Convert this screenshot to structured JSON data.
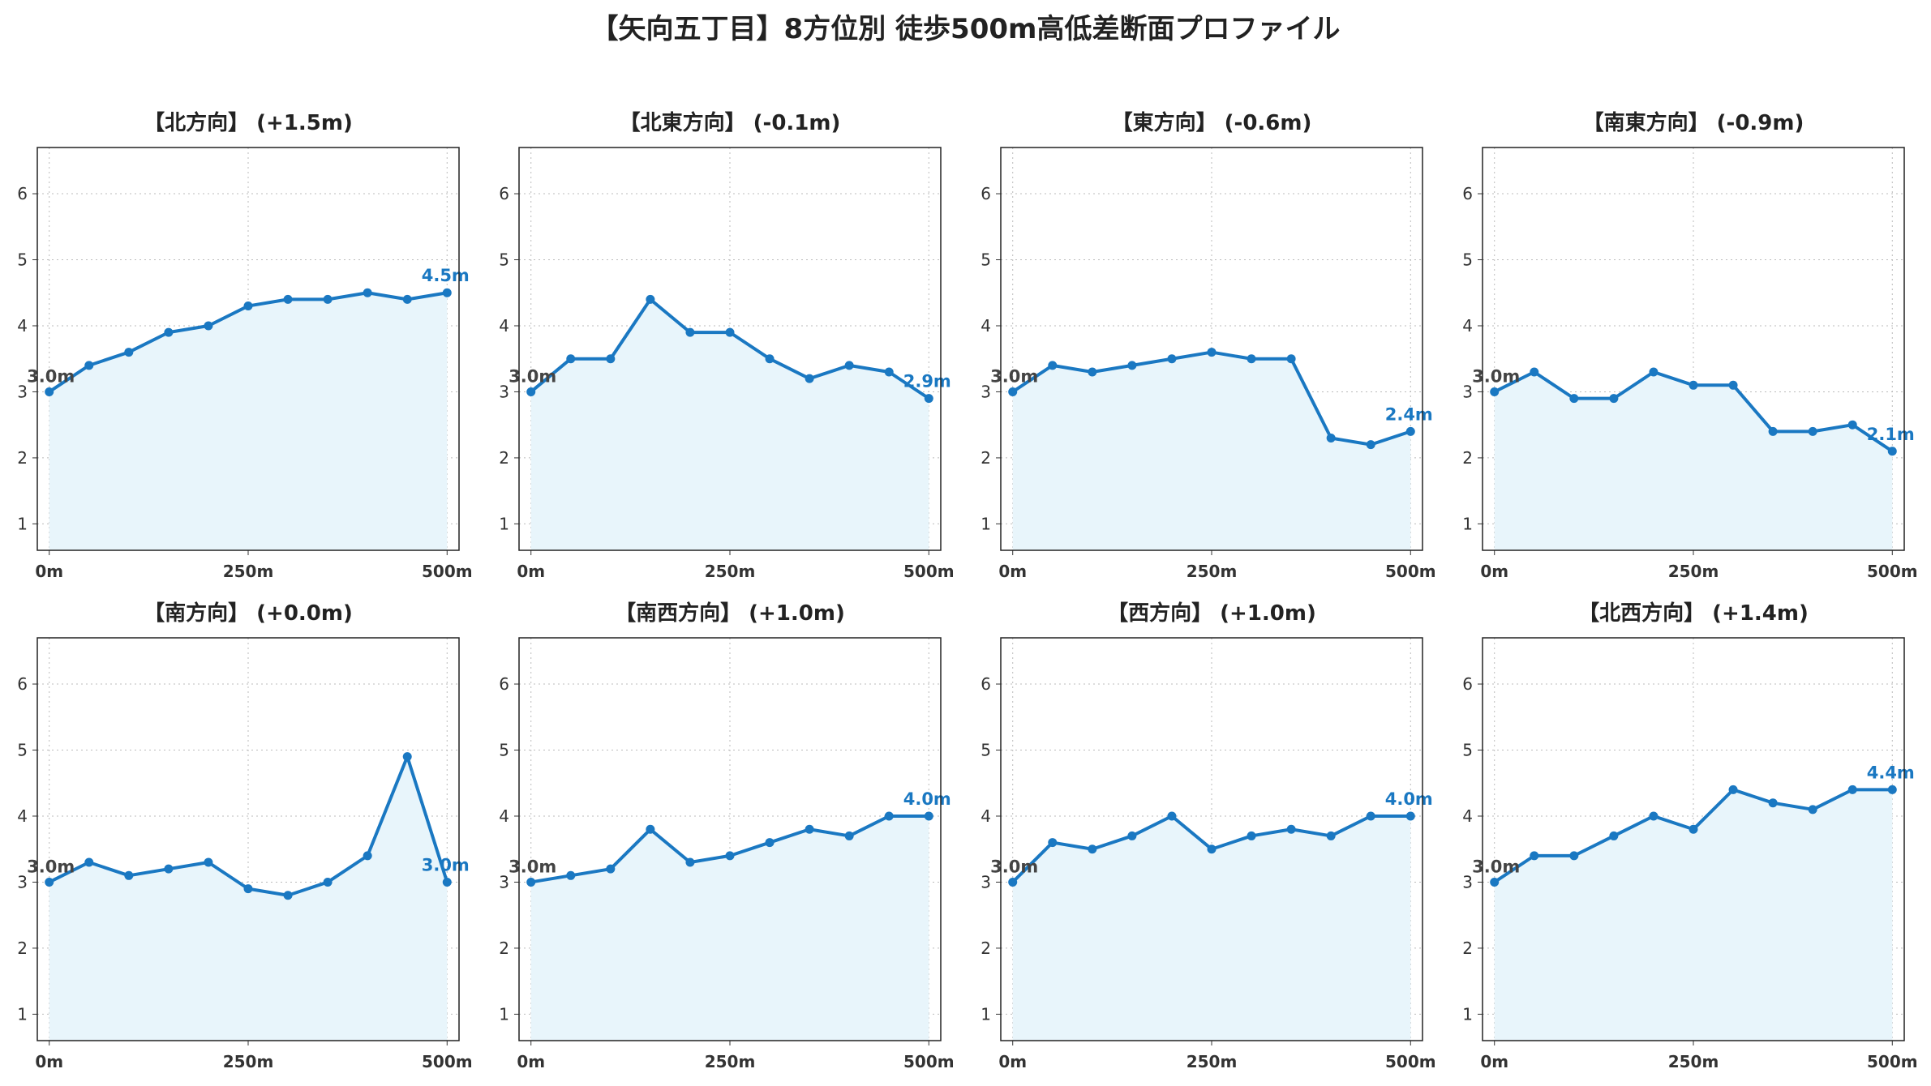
{
  "title": "【矢向五丁目】8方位別 徒歩500m高低差断面プロファイル",
  "colors": {
    "line": "#1a78c2",
    "fill": "#e8f5fb",
    "grid": "#bbbbbb",
    "start_label": "#444444"
  },
  "chart_data": [
    {
      "type": "area",
      "title": "【北方向】 (+1.5m)",
      "x": [
        0,
        50,
        100,
        150,
        200,
        250,
        300,
        350,
        400,
        450,
        500
      ],
      "values": [
        3.0,
        3.4,
        3.6,
        3.9,
        4.0,
        4.3,
        4.4,
        4.4,
        4.5,
        4.4,
        4.5
      ],
      "start_label": "3.0m",
      "end_label": "4.5m",
      "xticks": [
        "0m",
        "250m",
        "500m"
      ],
      "yticks": [
        "1",
        "2",
        "3",
        "4",
        "5",
        "6"
      ],
      "xlim": [
        -15,
        515
      ],
      "ylim": [
        0.6,
        6.7
      ],
      "grid": true
    },
    {
      "type": "area",
      "title": "【北東方向】 (-0.1m)",
      "x": [
        0,
        50,
        100,
        150,
        200,
        250,
        300,
        350,
        400,
        450,
        500
      ],
      "values": [
        3.0,
        3.5,
        3.5,
        4.4,
        3.9,
        3.9,
        3.5,
        3.2,
        3.4,
        3.3,
        2.9
      ],
      "start_label": "3.0m",
      "end_label": "2.9m",
      "xticks": [
        "0m",
        "250m",
        "500m"
      ],
      "yticks": [
        "1",
        "2",
        "3",
        "4",
        "5",
        "6"
      ],
      "xlim": [
        -15,
        515
      ],
      "ylim": [
        0.6,
        6.7
      ],
      "grid": true
    },
    {
      "type": "area",
      "title": "【東方向】 (-0.6m)",
      "x": [
        0,
        50,
        100,
        150,
        200,
        250,
        300,
        350,
        400,
        450,
        500
      ],
      "values": [
        3.0,
        3.4,
        3.3,
        3.4,
        3.5,
        3.6,
        3.5,
        3.5,
        2.3,
        2.2,
        2.4
      ],
      "start_label": "3.0m",
      "end_label": "2.4m",
      "xticks": [
        "0m",
        "250m",
        "500m"
      ],
      "yticks": [
        "1",
        "2",
        "3",
        "4",
        "5",
        "6"
      ],
      "xlim": [
        -15,
        515
      ],
      "ylim": [
        0.6,
        6.7
      ],
      "grid": true
    },
    {
      "type": "area",
      "title": "【南東方向】 (-0.9m)",
      "x": [
        0,
        50,
        100,
        150,
        200,
        250,
        300,
        350,
        400,
        450,
        500
      ],
      "values": [
        3.0,
        3.3,
        2.9,
        2.9,
        3.3,
        3.1,
        3.1,
        2.4,
        2.4,
        2.5,
        2.1
      ],
      "start_label": "3.0m",
      "end_label": "2.1m",
      "xticks": [
        "0m",
        "250m",
        "500m"
      ],
      "yticks": [
        "1",
        "2",
        "3",
        "4",
        "5",
        "6"
      ],
      "xlim": [
        -15,
        515
      ],
      "ylim": [
        0.6,
        6.7
      ],
      "grid": true
    },
    {
      "type": "area",
      "title": "【南方向】 (+0.0m)",
      "x": [
        0,
        50,
        100,
        150,
        200,
        250,
        300,
        350,
        400,
        450,
        500
      ],
      "values": [
        3.0,
        3.3,
        3.1,
        3.2,
        3.3,
        2.9,
        2.8,
        3.0,
        3.4,
        4.9,
        3.0
      ],
      "start_label": "3.0m",
      "end_label": "3.0m",
      "xticks": [
        "0m",
        "250m",
        "500m"
      ],
      "yticks": [
        "1",
        "2",
        "3",
        "4",
        "5",
        "6"
      ],
      "xlim": [
        -15,
        515
      ],
      "ylim": [
        0.6,
        6.7
      ],
      "grid": true
    },
    {
      "type": "area",
      "title": "【南西方向】 (+1.0m)",
      "x": [
        0,
        50,
        100,
        150,
        200,
        250,
        300,
        350,
        400,
        450,
        500
      ],
      "values": [
        3.0,
        3.1,
        3.2,
        3.8,
        3.3,
        3.4,
        3.6,
        3.8,
        3.7,
        4.0,
        4.0
      ],
      "start_label": "3.0m",
      "end_label": "4.0m",
      "xticks": [
        "0m",
        "250m",
        "500m"
      ],
      "yticks": [
        "1",
        "2",
        "3",
        "4",
        "5",
        "6"
      ],
      "xlim": [
        -15,
        515
      ],
      "ylim": [
        0.6,
        6.7
      ],
      "grid": true
    },
    {
      "type": "area",
      "title": "【西方向】 (+1.0m)",
      "x": [
        0,
        50,
        100,
        150,
        200,
        250,
        300,
        350,
        400,
        450,
        500
      ],
      "values": [
        3.0,
        3.6,
        3.5,
        3.7,
        4.0,
        3.5,
        3.7,
        3.8,
        3.7,
        4.0,
        4.0
      ],
      "start_label": "3.0m",
      "end_label": "4.0m",
      "xticks": [
        "0m",
        "250m",
        "500m"
      ],
      "yticks": [
        "1",
        "2",
        "3",
        "4",
        "5",
        "6"
      ],
      "xlim": [
        -15,
        515
      ],
      "ylim": [
        0.6,
        6.7
      ],
      "grid": true
    },
    {
      "type": "area",
      "title": "【北西方向】 (+1.4m)",
      "x": [
        0,
        50,
        100,
        150,
        200,
        250,
        300,
        350,
        400,
        450,
        500
      ],
      "values": [
        3.0,
        3.4,
        3.4,
        3.7,
        4.0,
        3.8,
        4.4,
        4.2,
        4.1,
        4.4,
        4.4
      ],
      "start_label": "3.0m",
      "end_label": "4.4m",
      "xticks": [
        "0m",
        "250m",
        "500m"
      ],
      "yticks": [
        "1",
        "2",
        "3",
        "4",
        "5",
        "6"
      ],
      "xlim": [
        -15,
        515
      ],
      "ylim": [
        0.6,
        6.7
      ],
      "grid": true
    }
  ]
}
